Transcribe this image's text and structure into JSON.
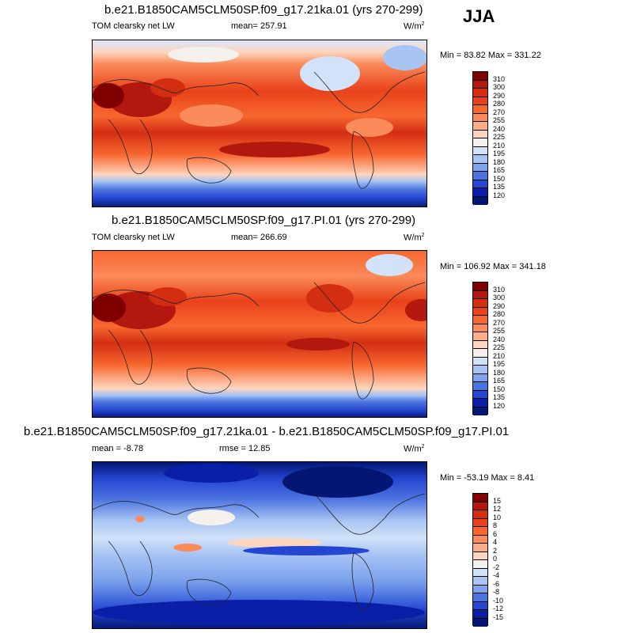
{
  "season": "JJA",
  "units_label": "W/m",
  "units_sup": "2",
  "panels": [
    {
      "title": "b.e21.B1850CAM5CLM50SP.f09_g17.21ka.01 (yrs 270-299)",
      "left_label": "TOM clearsky net LW",
      "mean": "mean= 257.91",
      "minmax": "Min =  83.82 Max = 331.22",
      "colorbar": {
        "labels": [
          "310",
          "300",
          "290",
          "280",
          "270",
          "255",
          "240",
          "225",
          "210",
          "195",
          "180",
          "165",
          "150",
          "135",
          "120"
        ],
        "colors": [
          "#800000",
          "#b2180e",
          "#d42e12",
          "#e9421a",
          "#f7672f",
          "#fb8b5a",
          "#fcae8a",
          "#fdd5be",
          "#f4f0ec",
          "#d2e2f8",
          "#a7c4f3",
          "#7da3ec",
          "#4c74e0",
          "#2446d0",
          "#0a1fa8",
          "#031673"
        ]
      }
    },
    {
      "title": "b.e21.B1850CAM5CLM50SP.f09_g17.PI.01 (yrs 270-299)",
      "left_label": "TOM clearsky net LW",
      "mean": "mean= 266.69",
      "minmax": "Min = 106.92 Max = 341.18",
      "colorbar": {
        "labels": [
          "310",
          "300",
          "290",
          "280",
          "270",
          "255",
          "240",
          "225",
          "210",
          "195",
          "180",
          "165",
          "150",
          "135",
          "120"
        ],
        "colors": [
          "#800000",
          "#b2180e",
          "#d42e12",
          "#e9421a",
          "#f7672f",
          "#fb8b5a",
          "#fcae8a",
          "#fdd5be",
          "#f4f0ec",
          "#d2e2f8",
          "#a7c4f3",
          "#7da3ec",
          "#4c74e0",
          "#2446d0",
          "#0a1fa8",
          "#031673"
        ]
      }
    },
    {
      "title": "b.e21.B1850CAM5CLM50SP.f09_g17.21ka.01 - b.e21.B1850CAM5CLM50SP.f09_g17.PI.01",
      "left_label": "mean =  -8.78",
      "mean": "rmse =  12.85",
      "minmax": "Min = -53.19 Max =   8.41",
      "colorbar": {
        "labels": [
          "15",
          "12",
          "10",
          "8",
          "6",
          "4",
          "2",
          "0",
          "-2",
          "-4",
          "-6",
          "-8",
          "-10",
          "-12",
          "-15"
        ],
        "colors": [
          "#800000",
          "#b2180e",
          "#d42e12",
          "#e9421a",
          "#f7672f",
          "#fb8b5a",
          "#fcae8a",
          "#fdd5be",
          "#f4f0ec",
          "#d2e2f8",
          "#a7c4f3",
          "#7da3ec",
          "#4c74e0",
          "#2446d0",
          "#0a1fa8",
          "#031673"
        ]
      }
    }
  ]
}
